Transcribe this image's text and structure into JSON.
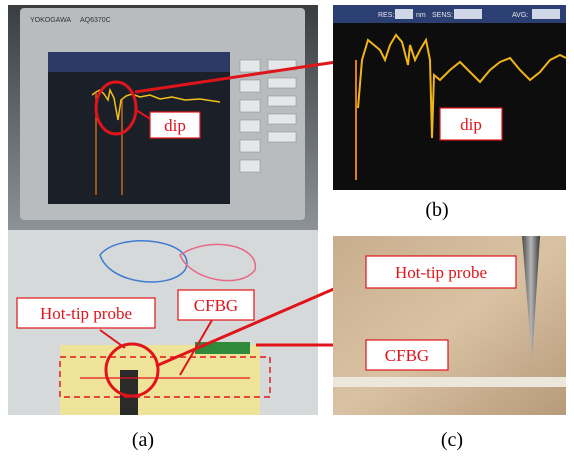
{
  "panel_a": {
    "instrument": {
      "brand": "YOKOGAWA",
      "model": "AQ6370C"
    },
    "dip_label": "dip",
    "probe_label": "Hot-tip probe",
    "fiber_label": "CFBG",
    "caption": "(a)"
  },
  "panel_b": {
    "header": {
      "res": "RES:",
      "unit": "nm",
      "sens": "SENS:",
      "avg": "AVG:"
    },
    "dip_label": "dip",
    "caption": "(b)"
  },
  "panel_c": {
    "probe_label": "Hot-tip probe",
    "fiber_label": "CFBG",
    "caption": "(c)"
  }
}
